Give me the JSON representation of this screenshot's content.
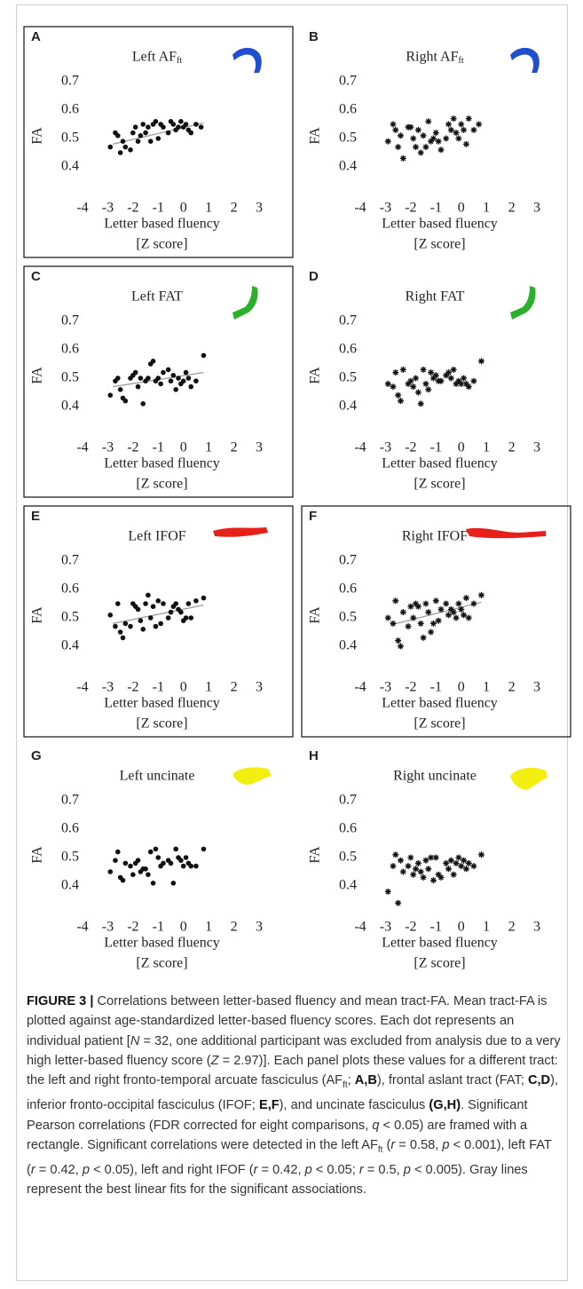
{
  "chart_data": [
    {
      "type": "scatter",
      "panel": "A",
      "title": "Left AF",
      "title_sub": "ft",
      "framed": true,
      "marker": "dot",
      "tract_color": "#1f4fd0",
      "ylabel": "FA",
      "xlabel": "Letter based fluency",
      "xlabel_unit": "[Z score]",
      "xlim": [
        -4,
        3
      ],
      "ylim": [
        0.3,
        0.75
      ],
      "xticks": [
        -4,
        -3,
        -2,
        -1,
        0,
        1,
        2,
        3
      ],
      "yticks": [
        0.4,
        0.5,
        0.6,
        0.7
      ],
      "grid": false,
      "x": [
        -2.9,
        -2.7,
        -2.6,
        -2.5,
        -2.4,
        -2.3,
        -2.1,
        -2.0,
        -1.9,
        -1.8,
        -1.7,
        -1.6,
        -1.5,
        -1.4,
        -1.3,
        -1.2,
        -1.1,
        -1.0,
        -0.9,
        -0.8,
        -0.6,
        -0.5,
        -0.4,
        -0.3,
        -0.2,
        -0.1,
        0.0,
        0.1,
        0.2,
        0.3,
        0.5,
        0.7
      ],
      "y": [
        0.47,
        0.52,
        0.51,
        0.45,
        0.49,
        0.47,
        0.46,
        0.52,
        0.54,
        0.49,
        0.51,
        0.55,
        0.52,
        0.54,
        0.49,
        0.55,
        0.56,
        0.5,
        0.55,
        0.54,
        0.52,
        0.56,
        0.55,
        0.53,
        0.54,
        0.56,
        0.54,
        0.55,
        0.53,
        0.52,
        0.55,
        0.54
      ],
      "fit_line": {
        "x": [
          -2.8,
          0.8
        ],
        "y": [
          0.48,
          0.555
        ]
      }
    },
    {
      "type": "scatter",
      "panel": "B",
      "title": "Right AF",
      "title_sub": "ft",
      "framed": false,
      "marker": "star",
      "tract_color": "#1f4fd0",
      "ylabel": "FA",
      "xlabel": "Letter based fluency",
      "xlabel_unit": "[Z score]",
      "xlim": [
        -4,
        3
      ],
      "ylim": [
        0.3,
        0.75
      ],
      "xticks": [
        -4,
        -3,
        -2,
        -1,
        0,
        1,
        2,
        3
      ],
      "yticks": [
        0.4,
        0.5,
        0.6,
        0.7
      ],
      "grid": false,
      "x": [
        -2.9,
        -2.7,
        -2.6,
        -2.5,
        -2.4,
        -2.3,
        -2.1,
        -2.0,
        -1.9,
        -1.8,
        -1.7,
        -1.6,
        -1.5,
        -1.4,
        -1.3,
        -1.2,
        -1.1,
        -1.0,
        -0.9,
        -0.8,
        -0.6,
        -0.5,
        -0.4,
        -0.3,
        -0.2,
        -0.1,
        0.0,
        0.1,
        0.2,
        0.3,
        0.5,
        0.7
      ],
      "y": [
        0.49,
        0.55,
        0.53,
        0.47,
        0.51,
        0.43,
        0.54,
        0.54,
        0.5,
        0.47,
        0.53,
        0.45,
        0.51,
        0.47,
        0.56,
        0.49,
        0.5,
        0.52,
        0.49,
        0.46,
        0.5,
        0.55,
        0.53,
        0.57,
        0.52,
        0.5,
        0.55,
        0.53,
        0.48,
        0.57,
        0.53,
        0.55
      ]
    },
    {
      "type": "scatter",
      "panel": "C",
      "title": "Left FAT",
      "framed": true,
      "marker": "dot",
      "tract_color": "#2ab02a",
      "ylabel": "FA",
      "xlabel": "Letter based fluency",
      "xlabel_unit": "[Z score]",
      "xlim": [
        -4,
        3
      ],
      "ylim": [
        0.3,
        0.75
      ],
      "xticks": [
        -4,
        -3,
        -2,
        -1,
        0,
        1,
        2,
        3
      ],
      "yticks": [
        0.4,
        0.5,
        0.6,
        0.7
      ],
      "grid": false,
      "x": [
        -2.9,
        -2.7,
        -2.6,
        -2.5,
        -2.4,
        -2.3,
        -2.1,
        -2.0,
        -1.9,
        -1.8,
        -1.7,
        -1.6,
        -1.5,
        -1.4,
        -1.3,
        -1.2,
        -1.1,
        -1.0,
        -0.9,
        -0.8,
        -0.6,
        -0.5,
        -0.4,
        -0.3,
        -0.2,
        -0.1,
        0.0,
        0.1,
        0.2,
        0.3,
        0.5,
        0.8
      ],
      "y": [
        0.44,
        0.49,
        0.5,
        0.46,
        0.43,
        0.42,
        0.5,
        0.51,
        0.52,
        0.47,
        0.5,
        0.41,
        0.49,
        0.5,
        0.55,
        0.56,
        0.49,
        0.5,
        0.48,
        0.52,
        0.53,
        0.49,
        0.51,
        0.46,
        0.5,
        0.48,
        0.49,
        0.52,
        0.5,
        0.47,
        0.49,
        0.58
      ],
      "fit_line": {
        "x": [
          -2.8,
          0.8
        ],
        "y": [
          0.47,
          0.52
        ]
      }
    },
    {
      "type": "scatter",
      "panel": "D",
      "title": "Right FAT",
      "framed": false,
      "marker": "star",
      "tract_color": "#2ab02a",
      "ylabel": "FA",
      "xlabel": "Letter based fluency",
      "xlabel_unit": "[Z score]",
      "xlim": [
        -4,
        3
      ],
      "ylim": [
        0.3,
        0.75
      ],
      "xticks": [
        -4,
        -3,
        -2,
        -1,
        0,
        1,
        2,
        3
      ],
      "yticks": [
        0.4,
        0.5,
        0.6,
        0.7
      ],
      "grid": false,
      "x": [
        -2.9,
        -2.7,
        -2.6,
        -2.5,
        -2.4,
        -2.3,
        -2.1,
        -2.0,
        -1.9,
        -1.8,
        -1.7,
        -1.6,
        -1.5,
        -1.4,
        -1.3,
        -1.2,
        -1.1,
        -1.0,
        -0.9,
        -0.8,
        -0.6,
        -0.5,
        -0.4,
        -0.3,
        -0.2,
        -0.1,
        0.0,
        0.1,
        0.2,
        0.3,
        0.5,
        0.8
      ],
      "y": [
        0.48,
        0.47,
        0.52,
        0.44,
        0.42,
        0.53,
        0.48,
        0.49,
        0.47,
        0.5,
        0.45,
        0.41,
        0.53,
        0.48,
        0.46,
        0.52,
        0.5,
        0.51,
        0.49,
        0.49,
        0.51,
        0.52,
        0.5,
        0.53,
        0.48,
        0.49,
        0.48,
        0.5,
        0.48,
        0.47,
        0.49,
        0.56
      ]
    },
    {
      "type": "scatter",
      "panel": "E",
      "title": "Left IFOF",
      "framed": true,
      "marker": "dot",
      "tract_color": "#e8201c",
      "ylabel": "FA",
      "xlabel": "Letter based fluency",
      "xlabel_unit": "[Z score]",
      "xlim": [
        -4,
        3
      ],
      "ylim": [
        0.3,
        0.75
      ],
      "xticks": [
        -4,
        -3,
        -2,
        -1,
        0,
        1,
        2,
        3
      ],
      "yticks": [
        0.4,
        0.5,
        0.6,
        0.7
      ],
      "grid": false,
      "x": [
        -2.9,
        -2.7,
        -2.6,
        -2.5,
        -2.4,
        -2.3,
        -2.1,
        -2.0,
        -1.9,
        -1.8,
        -1.7,
        -1.6,
        -1.5,
        -1.4,
        -1.3,
        -1.2,
        -1.1,
        -1.0,
        -0.9,
        -0.8,
        -0.6,
        -0.5,
        -0.4,
        -0.3,
        -0.2,
        -0.1,
        0.0,
        0.1,
        0.2,
        0.3,
        0.5,
        0.8
      ],
      "y": [
        0.51,
        0.47,
        0.55,
        0.45,
        0.43,
        0.48,
        0.47,
        0.55,
        0.54,
        0.53,
        0.49,
        0.46,
        0.55,
        0.58,
        0.5,
        0.54,
        0.47,
        0.56,
        0.48,
        0.55,
        0.5,
        0.52,
        0.54,
        0.55,
        0.53,
        0.52,
        0.49,
        0.5,
        0.55,
        0.5,
        0.56,
        0.57
      ],
      "fit_line": {
        "x": [
          -2.8,
          0.8
        ],
        "y": [
          0.48,
          0.545
        ]
      }
    },
    {
      "type": "scatter",
      "panel": "F",
      "title": "Right IFOF",
      "framed": true,
      "marker": "star",
      "tract_color": "#e8201c",
      "ylabel": "FA",
      "xlabel": "Letter based fluency",
      "xlabel_unit": "[Z score]",
      "xlim": [
        -4,
        3
      ],
      "ylim": [
        0.3,
        0.75
      ],
      "xticks": [
        -4,
        -3,
        -2,
        -1,
        0,
        1,
        2,
        3
      ],
      "yticks": [
        0.4,
        0.5,
        0.6,
        0.7
      ],
      "grid": false,
      "x": [
        -2.9,
        -2.7,
        -2.6,
        -2.5,
        -2.4,
        -2.3,
        -2.1,
        -2.0,
        -1.9,
        -1.8,
        -1.7,
        -1.6,
        -1.5,
        -1.4,
        -1.3,
        -1.2,
        -1.1,
        -1.0,
        -0.9,
        -0.8,
        -0.6,
        -0.5,
        -0.4,
        -0.3,
        -0.2,
        -0.1,
        0.0,
        0.1,
        0.2,
        0.3,
        0.5,
        0.8
      ],
      "y": [
        0.5,
        0.48,
        0.56,
        0.42,
        0.4,
        0.52,
        0.47,
        0.54,
        0.5,
        0.55,
        0.54,
        0.48,
        0.43,
        0.55,
        0.52,
        0.45,
        0.48,
        0.56,
        0.49,
        0.53,
        0.55,
        0.51,
        0.53,
        0.52,
        0.5,
        0.55,
        0.53,
        0.51,
        0.57,
        0.5,
        0.55,
        0.58
      ],
      "fit_line": {
        "x": [
          -2.8,
          0.8
        ],
        "y": [
          0.475,
          0.555
        ]
      }
    },
    {
      "type": "scatter",
      "panel": "G",
      "title": "Left uncinate",
      "framed": false,
      "marker": "dot",
      "tract_color": "#f2ee10",
      "ylabel": "FA",
      "xlabel": "Letter based fluency",
      "xlabel_unit": "[Z score]",
      "xlim": [
        -4,
        3
      ],
      "ylim": [
        0.3,
        0.75
      ],
      "xticks": [
        -4,
        -3,
        -2,
        -1,
        0,
        1,
        2,
        3
      ],
      "yticks": [
        0.4,
        0.5,
        0.6,
        0.7
      ],
      "grid": false,
      "x": [
        -2.9,
        -2.7,
        -2.6,
        -2.5,
        -2.4,
        -2.3,
        -2.1,
        -2.0,
        -1.9,
        -1.8,
        -1.7,
        -1.6,
        -1.5,
        -1.4,
        -1.3,
        -1.2,
        -1.1,
        -1.0,
        -0.9,
        -0.8,
        -0.6,
        -0.5,
        -0.4,
        -0.3,
        -0.2,
        -0.1,
        0.0,
        0.1,
        0.2,
        0.3,
        0.5,
        0.8
      ],
      "y": [
        0.45,
        0.49,
        0.52,
        0.43,
        0.42,
        0.48,
        0.47,
        0.44,
        0.48,
        0.49,
        0.45,
        0.46,
        0.46,
        0.44,
        0.52,
        0.41,
        0.53,
        0.5,
        0.47,
        0.48,
        0.49,
        0.48,
        0.41,
        0.53,
        0.5,
        0.49,
        0.47,
        0.5,
        0.48,
        0.47,
        0.47,
        0.53
      ]
    },
    {
      "type": "scatter",
      "panel": "H",
      "title": "Right uncinate",
      "framed": false,
      "marker": "star",
      "tract_color": "#f2ee10",
      "ylabel": "FA",
      "xlabel": "Letter based fluency",
      "xlabel_unit": "[Z score]",
      "xlim": [
        -4,
        3
      ],
      "ylim": [
        0.3,
        0.75
      ],
      "xticks": [
        -4,
        -3,
        -2,
        -1,
        0,
        1,
        2,
        3
      ],
      "yticks": [
        0.4,
        0.5,
        0.6,
        0.7
      ],
      "grid": false,
      "x": [
        -2.9,
        -2.7,
        -2.6,
        -2.5,
        -2.4,
        -2.3,
        -2.1,
        -2.0,
        -1.9,
        -1.8,
        -1.7,
        -1.6,
        -1.5,
        -1.4,
        -1.3,
        -1.2,
        -1.1,
        -1.0,
        -0.9,
        -0.8,
        -0.6,
        -0.5,
        -0.4,
        -0.3,
        -0.2,
        -0.1,
        0.0,
        0.1,
        0.2,
        0.3,
        0.5,
        0.8
      ],
      "y": [
        0.38,
        0.47,
        0.51,
        0.34,
        0.49,
        0.45,
        0.47,
        0.5,
        0.44,
        0.46,
        0.48,
        0.45,
        0.43,
        0.49,
        0.46,
        0.5,
        0.42,
        0.5,
        0.44,
        0.43,
        0.48,
        0.46,
        0.49,
        0.44,
        0.48,
        0.5,
        0.47,
        0.49,
        0.46,
        0.48,
        0.47,
        0.51
      ]
    }
  ],
  "caption": {
    "runs": [
      {
        "text": "FIGURE 3 |",
        "style": "b"
      },
      {
        "text": " Correlations between letter-based fluency and mean tract-FA. Mean tract-FA is plotted against age-standardized letter-based fluency scores. Each dot represents an individual patient [",
        "style": ""
      },
      {
        "text": "N",
        "style": "i"
      },
      {
        "text": " = 32, one additional participant was excluded from analysis due to a very high letter-based fluency score (",
        "style": ""
      },
      {
        "text": "Z",
        "style": "i"
      },
      {
        "text": " = 2.97)]. Each panel plots these values for a different tract: the left and right fronto-temporal arcuate fasciculus (AF",
        "style": ""
      },
      {
        "text": "ft",
        "style": "sub"
      },
      {
        "text": "; ",
        "style": ""
      },
      {
        "text": "A,B",
        "style": "b"
      },
      {
        "text": "), frontal aslant tract (FAT; ",
        "style": ""
      },
      {
        "text": "C,D",
        "style": "b"
      },
      {
        "text": "), inferior fronto-occipital fasciculus (IFOF; ",
        "style": ""
      },
      {
        "text": "E,F",
        "style": "b"
      },
      {
        "text": "), and uncinate fasciculus ",
        "style": ""
      },
      {
        "text": "(G,H)",
        "style": "b"
      },
      {
        "text": ". Significant Pearson correlations (FDR corrected for eight comparisons, ",
        "style": ""
      },
      {
        "text": "q",
        "style": "i"
      },
      {
        "text": " < 0.05) are framed with a rectangle. Significant correlations were detected in the left AF",
        "style": ""
      },
      {
        "text": "ft",
        "style": "sub"
      },
      {
        "text": " (",
        "style": ""
      },
      {
        "text": "r",
        "style": "i"
      },
      {
        "text": " = 0.58, ",
        "style": ""
      },
      {
        "text": "p",
        "style": "i"
      },
      {
        "text": " < 0.001), left FAT (",
        "style": ""
      },
      {
        "text": "r",
        "style": "i"
      },
      {
        "text": " = 0.42, ",
        "style": ""
      },
      {
        "text": "p",
        "style": "i"
      },
      {
        "text": " < 0.05), left and right IFOF (",
        "style": ""
      },
      {
        "text": "r",
        "style": "i"
      },
      {
        "text": " = 0.42, ",
        "style": ""
      },
      {
        "text": "p",
        "style": "i"
      },
      {
        "text": " < 0.05; ",
        "style": ""
      },
      {
        "text": "r",
        "style": "i"
      },
      {
        "text": " = 0.5, ",
        "style": ""
      },
      {
        "text": "p",
        "style": "i"
      },
      {
        "text": " < 0.005). Gray lines represent the best linear fits for the significant associations.",
        "style": ""
      }
    ]
  }
}
